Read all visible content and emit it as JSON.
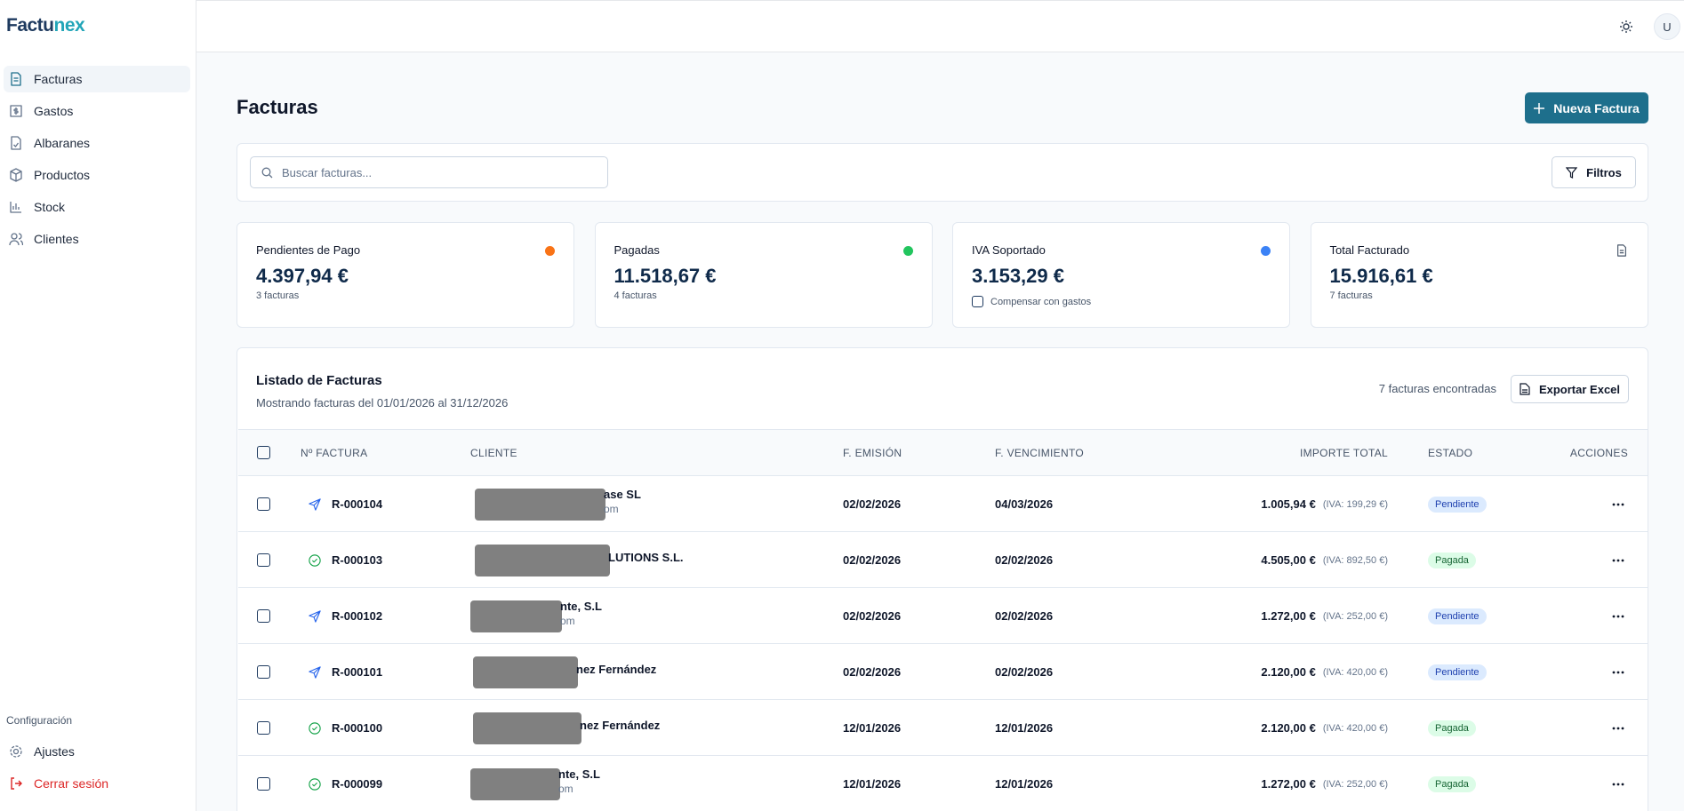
{
  "brand": {
    "name_a": "Factu",
    "name_b": "nex"
  },
  "sidebar": {
    "nav": [
      "Facturas",
      "Gastos",
      "Albaranes",
      "Productos",
      "Stock",
      "Clientes"
    ],
    "section": "Configuración",
    "settings": "Ajustes",
    "logout": "Cerrar sesión"
  },
  "header": {
    "avatar": "U"
  },
  "page": {
    "title": "Facturas",
    "new_button": "Nueva Factura",
    "search_placeholder": "Buscar facturas...",
    "filters": "Filtros"
  },
  "stats": [
    {
      "label": "Pendientes de Pago",
      "value": "4.397,94 €",
      "note": "3 facturas",
      "color": "#f97316"
    },
    {
      "label": "Pagadas",
      "value": "11.518,67 €",
      "note": "4 facturas",
      "color": "#22c55e"
    },
    {
      "label": "IVA Soportado",
      "value": "3.153,29 €",
      "checkbox": "Compensar con gastos",
      "color": "#3b82f6"
    },
    {
      "label": "Total Facturado",
      "value": "15.916,61 €",
      "note": "7 facturas"
    }
  ],
  "list": {
    "title": "Listado de Facturas",
    "subtitle": "Mostrando facturas del 01/01/2026 al 31/12/2026",
    "count": "7 facturas encontradas",
    "export": "Exportar Excel",
    "columns": [
      "Nº FACTURA",
      "CLIENTE",
      "F. EMISIÓN",
      "F. VENCIMIENTO",
      "IMPORTE TOTAL",
      "ESTADO",
      "ACCIONES"
    ],
    "rows": [
      {
        "number": "R-000104",
        "client": "ase SL",
        "client_sub": "om",
        "issued": "02/02/2026",
        "due": "04/03/2026",
        "total": "1.005,94 €",
        "vat": "(IVA: 199,29 €)",
        "status": "Pendiente",
        "icon": "send"
      },
      {
        "number": "R-000103",
        "client": "LUTIONS S.L.",
        "issued": "02/02/2026",
        "due": "02/02/2026",
        "total": "4.505,00 €",
        "vat": "(IVA: 892,50 €)",
        "status": "Pagada",
        "icon": "check"
      },
      {
        "number": "R-000102",
        "client": "nte, S.L",
        "client_sub": "om",
        "issued": "02/02/2026",
        "due": "02/02/2026",
        "total": "1.272,00 €",
        "vat": "(IVA: 252,00 €)",
        "status": "Pendiente",
        "icon": "send"
      },
      {
        "number": "R-000101",
        "client": "nez Fernández",
        "issued": "02/02/2026",
        "due": "02/02/2026",
        "total": "2.120,00 €",
        "vat": "(IVA: 420,00 €)",
        "status": "Pendiente",
        "icon": "send"
      },
      {
        "number": "R-000100",
        "client": "nez Fernández",
        "issued": "12/01/2026",
        "due": "12/01/2026",
        "total": "2.120,00 €",
        "vat": "(IVA: 420,00 €)",
        "status": "Pagada",
        "icon": "check"
      },
      {
        "number": "R-000099",
        "client": "nte, S.L",
        "client_sub": "om",
        "issued": "12/01/2026",
        "due": "12/01/2026",
        "total": "1.272,00 €",
        "vat": "(IVA: 252,00 €)",
        "status": "Pagada",
        "icon": "check"
      }
    ]
  }
}
